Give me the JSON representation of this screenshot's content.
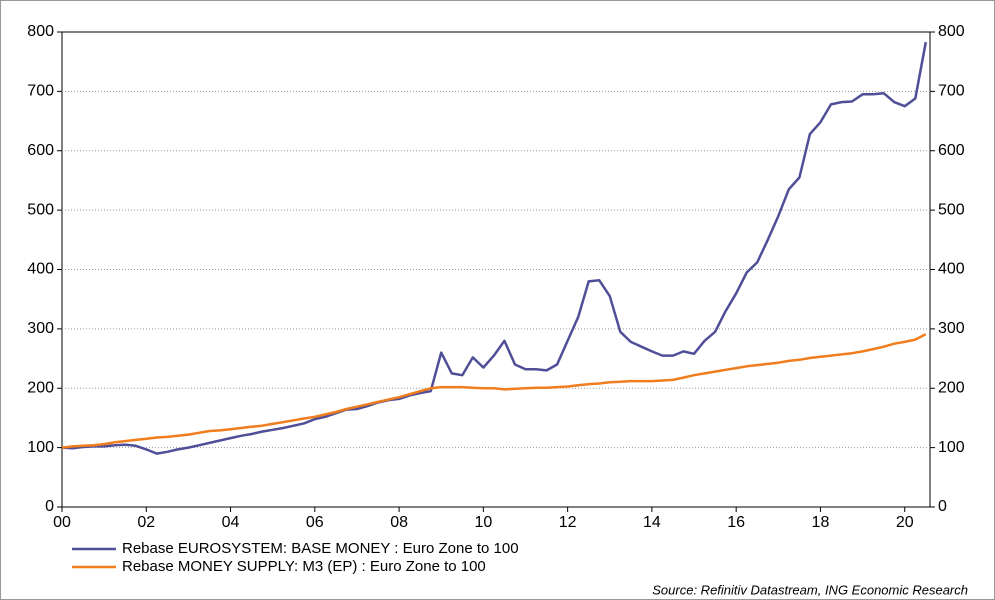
{
  "chart_data": {
    "type": "line",
    "x": [
      2000,
      2000.25,
      2000.5,
      2000.75,
      2001,
      2001.25,
      2001.5,
      2001.75,
      2002,
      2002.25,
      2002.5,
      2002.75,
      2003,
      2003.25,
      2003.5,
      2003.75,
      2004,
      2004.25,
      2004.5,
      2004.75,
      2005,
      2005.25,
      2005.5,
      2005.75,
      2006,
      2006.25,
      2006.5,
      2006.75,
      2007,
      2007.25,
      2007.5,
      2007.75,
      2008,
      2008.25,
      2008.5,
      2008.75,
      2009,
      2009.25,
      2009.5,
      2009.75,
      2010,
      2010.25,
      2010.5,
      2010.75,
      2011,
      2011.25,
      2011.5,
      2011.75,
      2012,
      2012.25,
      2012.5,
      2012.75,
      2013,
      2013.25,
      2013.5,
      2013.75,
      2014,
      2014.25,
      2014.5,
      2014.75,
      2015,
      2015.25,
      2015.5,
      2015.75,
      2016,
      2016.25,
      2016.5,
      2016.75,
      2017,
      2017.25,
      2017.5,
      2017.75,
      2018,
      2018.25,
      2018.5,
      2018.75,
      2019,
      2019.25,
      2019.5,
      2019.75,
      2020,
      2020.25,
      2020.5
    ],
    "series": [
      {
        "name": "Rebase EUROSYSTEM: BASE MONEY : Euro Zone to 100",
        "color": "#4f4f98",
        "values": [
          100,
          99,
          101,
          102,
          102,
          104,
          105,
          103,
          97,
          90,
          93,
          97,
          100,
          104,
          108,
          112,
          116,
          120,
          123,
          127,
          130,
          133,
          137,
          141,
          148,
          152,
          158,
          164,
          165,
          170,
          176,
          180,
          182,
          188,
          192,
          195,
          260,
          225,
          222,
          252,
          235,
          255,
          280,
          240,
          232,
          232,
          230,
          240,
          280,
          320,
          380,
          382,
          355,
          295,
          278,
          270,
          262,
          255,
          255,
          262,
          258,
          280,
          295,
          330,
          360,
          395,
          412,
          450,
          490,
          535,
          555,
          628,
          648,
          678,
          682,
          683,
          695,
          695,
          697,
          682,
          675,
          688,
          783
        ]
      },
      {
        "name": "Rebase MONEY SUPPLY: M3 (EP) : Euro Zone to 100",
        "color": "#f07d1e",
        "values": [
          100,
          102,
          103,
          104,
          106,
          109,
          111,
          113,
          115,
          117,
          118,
          120,
          122,
          125,
          128,
          129,
          131,
          133,
          135,
          137,
          140,
          143,
          146,
          149,
          152,
          156,
          160,
          165,
          169,
          173,
          177,
          181,
          185,
          190,
          195,
          200,
          202,
          202,
          202,
          201,
          200,
          200,
          198,
          199,
          200,
          201,
          201,
          202,
          203,
          205,
          207,
          208,
          210,
          211,
          212,
          212,
          212,
          213,
          214,
          218,
          222,
          225,
          228,
          231,
          234,
          237,
          239,
          241,
          243,
          246,
          248,
          251,
          253,
          255,
          257,
          259,
          262,
          266,
          270,
          275,
          278,
          282,
          291
        ]
      }
    ],
    "xlim": [
      2000,
      2020.6
    ],
    "xticks": [
      {
        "value": 2000,
        "label": "00"
      },
      {
        "value": 2002,
        "label": "02"
      },
      {
        "value": 2004,
        "label": "04"
      },
      {
        "value": 2006,
        "label": "06"
      },
      {
        "value": 2008,
        "label": "08"
      },
      {
        "value": 2010,
        "label": "10"
      },
      {
        "value": 2012,
        "label": "12"
      },
      {
        "value": 2014,
        "label": "14"
      },
      {
        "value": 2016,
        "label": "16"
      },
      {
        "value": 2018,
        "label": "18"
      },
      {
        "value": 2020,
        "label": "20"
      }
    ],
    "ylim": [
      0,
      800
    ],
    "yticks": [
      0,
      100,
      200,
      300,
      400,
      500,
      600,
      700,
      800
    ],
    "y2lim": [
      0,
      800
    ],
    "y2ticks": [
      0,
      100,
      200,
      300,
      400,
      500,
      600,
      700,
      800
    ],
    "grid": true,
    "source": "Source: Refinitiv Datastream, ING Economic Research"
  }
}
